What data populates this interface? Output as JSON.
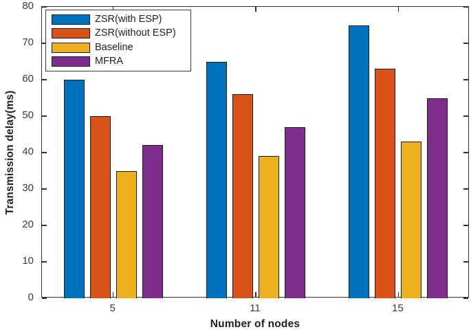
{
  "chart_data": {
    "type": "bar",
    "title": "",
    "xlabel": "Number of nodes",
    "ylabel": "Transmission delay(ms)",
    "categories": [
      "5",
      "11",
      "15"
    ],
    "series": [
      {
        "name": "ZSR(with ESP)",
        "color": "#0072BD",
        "values": [
          60,
          65,
          75
        ]
      },
      {
        "name": "ZSR(without ESP)",
        "color": "#D95319",
        "values": [
          50,
          56,
          63
        ]
      },
      {
        "name": "Baseline",
        "color": "#EDB120",
        "values": [
          35,
          39,
          43
        ]
      },
      {
        "name": "MFRA",
        "color": "#7E2F8E",
        "values": [
          42,
          47,
          55
        ]
      }
    ],
    "ylim": [
      0,
      80
    ],
    "yticks": [
      0,
      10,
      20,
      30,
      40,
      50,
      60,
      70,
      80
    ],
    "legend_position": "top-left",
    "grid": false,
    "bar_edge_color": "#1a1a1a",
    "axis_color": "#2e2e2e"
  }
}
